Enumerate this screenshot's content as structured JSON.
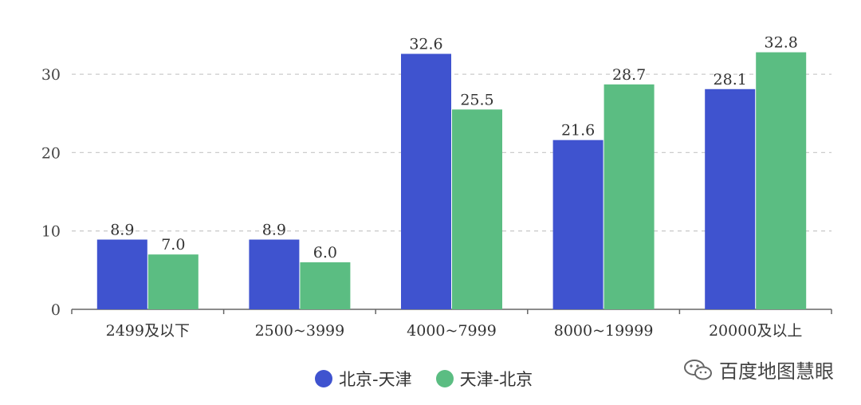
{
  "chart_data": {
    "type": "bar",
    "categories": [
      "2499及以下",
      "2500~3999",
      "4000~7999",
      "8000~19999",
      "20000及以上"
    ],
    "series": [
      {
        "name": "北京-天津",
        "color": "#3f53cf",
        "values": [
          8.9,
          8.9,
          32.6,
          21.6,
          28.1
        ]
      },
      {
        "name": "天津-北京",
        "color": "#5bbd82",
        "values": [
          7.0,
          6.0,
          25.5,
          28.7,
          32.8
        ]
      }
    ],
    "ylim": [
      0,
      35
    ],
    "yticks": [
      0,
      10,
      20,
      30
    ],
    "grid": true,
    "legend_position": "bottom"
  },
  "watermark": {
    "text": "百度地图慧眼",
    "icon": "wechat-icon"
  }
}
